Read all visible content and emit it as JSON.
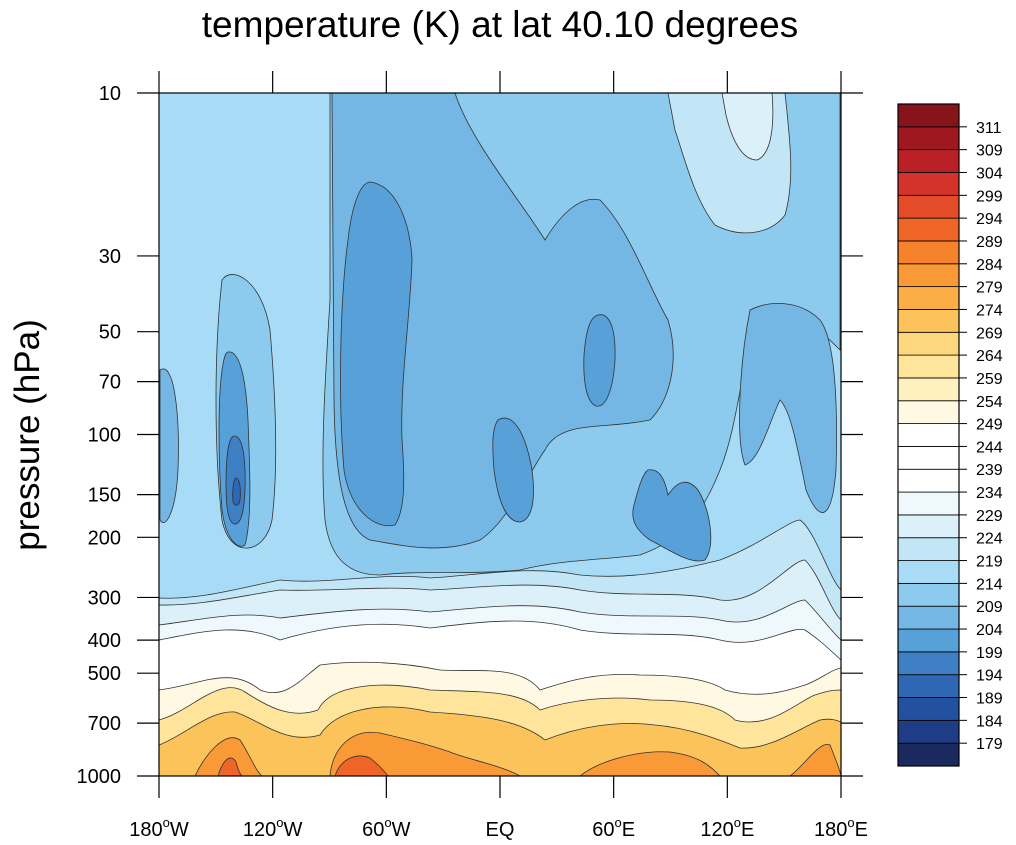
{
  "chart_data": {
    "type": "contour",
    "title": "temperature (K) at lat 40.10 degrees",
    "ylabel": "pressure (hPa)",
    "y_scale": "log",
    "y_reversed": true,
    "ylim": [
      1000,
      10
    ],
    "y_ticks": [
      10,
      30,
      50,
      70,
      100,
      150,
      200,
      300,
      400,
      500,
      700,
      1000
    ],
    "xlim": [
      -180,
      180
    ],
    "x_ticks": [
      -180,
      -120,
      -60,
      0,
      60,
      120,
      180
    ],
    "x_tick_labels": [
      {
        "num": "180",
        "hem": "W"
      },
      {
        "num": "120",
        "hem": "W"
      },
      {
        "num": "60",
        "hem": "W"
      },
      {
        "num": "EQ",
        "hem": ""
      },
      {
        "num": "60",
        "hem": "E"
      },
      {
        "num": "120",
        "hem": "E"
      },
      {
        "num": "180",
        "hem": "E"
      }
    ],
    "colorbar": {
      "placement": "right",
      "levels": [
        179,
        184,
        189,
        194,
        199,
        204,
        209,
        214,
        219,
        224,
        229,
        234,
        239,
        244,
        249,
        254,
        259,
        264,
        269,
        274,
        279,
        284,
        289,
        294,
        299,
        304,
        309,
        311
      ],
      "colors": [
        "#1b2a5e",
        "#1f3d87",
        "#24519f",
        "#2e67b3",
        "#3f7fc4",
        "#58a0d8",
        "#74b6e4",
        "#8ccaee",
        "#a8dcf6",
        "#c3e6f7",
        "#dcf0fa",
        "#eff8fd",
        "#ffffff",
        "#ffffff",
        "#ffffff",
        "#fff9e3",
        "#fff0bf",
        "#fee59b",
        "#fdd77e",
        "#fcc35b",
        "#fbae45",
        "#f99a36",
        "#f6822c",
        "#ef6528",
        "#e44b29",
        "#d3332a",
        "#bb2026",
        "#9f1820",
        "#86141a"
      ]
    },
    "grid": false
  }
}
